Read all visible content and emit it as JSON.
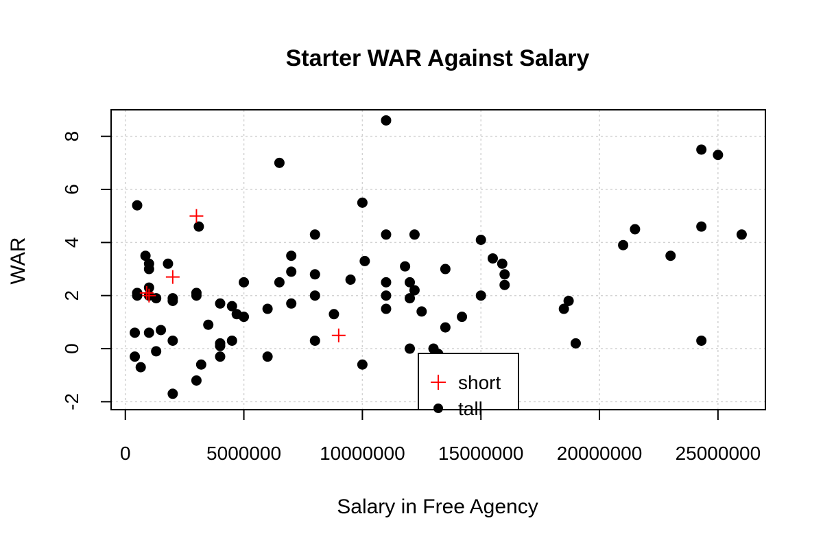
{
  "chart_data": {
    "type": "scatter",
    "title": "Starter WAR Against Salary",
    "xlabel": "Salary in Free Agency",
    "ylabel": "WAR",
    "xlim": [
      -600000,
      27000000
    ],
    "ylim": [
      -2.3,
      9.0
    ],
    "xticks": [
      0,
      5000000,
      10000000,
      15000000,
      20000000,
      25000000
    ],
    "xtick_labels": [
      "0",
      "5000000",
      "10000000",
      "15000000",
      "20000000",
      "25000000"
    ],
    "yticks": [
      -2,
      0,
      2,
      4,
      6,
      8
    ],
    "ytick_labels": [
      "-2",
      "0",
      "2",
      "4",
      "6",
      "8"
    ],
    "grid": true,
    "legend_position": "bottom-center",
    "series": [
      {
        "name": "short",
        "marker": "plus",
        "color": "#ff0000",
        "points": [
          [
            3000000,
            5.0
          ],
          [
            2000000,
            2.7
          ],
          [
            1000000,
            2.0
          ],
          [
            900000,
            2.1
          ],
          [
            9000000,
            0.5
          ]
        ]
      },
      {
        "name": "tall",
        "marker": "circle",
        "color": "#000000",
        "points": [
          [
            500000,
            5.4
          ],
          [
            500000,
            2.1
          ],
          [
            500000,
            2.0
          ],
          [
            400000,
            0.6
          ],
          [
            400000,
            -0.3
          ],
          [
            650000,
            -0.7
          ],
          [
            850000,
            3.5
          ],
          [
            1000000,
            3.2
          ],
          [
            1000000,
            3.0
          ],
          [
            1000000,
            2.3
          ],
          [
            1000000,
            2.0
          ],
          [
            1000000,
            0.6
          ],
          [
            1300000,
            1.9
          ],
          [
            1300000,
            -0.1
          ],
          [
            1500000,
            0.7
          ],
          [
            1800000,
            3.2
          ],
          [
            2000000,
            1.9
          ],
          [
            2000000,
            1.8
          ],
          [
            2000000,
            0.3
          ],
          [
            2000000,
            -1.7
          ],
          [
            3000000,
            2.1
          ],
          [
            3000000,
            2.0
          ],
          [
            3100000,
            4.6
          ],
          [
            3000000,
            -1.2
          ],
          [
            3200000,
            -0.6
          ],
          [
            3500000,
            0.9
          ],
          [
            4000000,
            1.7
          ],
          [
            4000000,
            0.2
          ],
          [
            4000000,
            0.1
          ],
          [
            4000000,
            -0.3
          ],
          [
            4500000,
            1.6
          ],
          [
            4500000,
            0.3
          ],
          [
            4700000,
            1.3
          ],
          [
            5000000,
            2.5
          ],
          [
            5000000,
            1.2
          ],
          [
            6000000,
            1.5
          ],
          [
            6000000,
            -0.3
          ],
          [
            6500000,
            7.0
          ],
          [
            6500000,
            2.5
          ],
          [
            7000000,
            3.5
          ],
          [
            7000000,
            2.9
          ],
          [
            7000000,
            1.7
          ],
          [
            8000000,
            4.3
          ],
          [
            8000000,
            2.8
          ],
          [
            8000000,
            2.0
          ],
          [
            8000000,
            0.3
          ],
          [
            8800000,
            1.3
          ],
          [
            9500000,
            2.6
          ],
          [
            10000000,
            5.5
          ],
          [
            10100000,
            3.3
          ],
          [
            10000000,
            -0.6
          ],
          [
            11000000,
            8.6
          ],
          [
            11000000,
            4.3
          ],
          [
            11000000,
            2.5
          ],
          [
            11000000,
            2.0
          ],
          [
            11000000,
            1.5
          ],
          [
            11800000,
            3.1
          ],
          [
            12000000,
            2.5
          ],
          [
            12000000,
            1.9
          ],
          [
            12000000,
            0.0
          ],
          [
            12200000,
            4.3
          ],
          [
            12200000,
            2.2
          ],
          [
            12500000,
            1.4
          ],
          [
            13000000,
            0.0
          ],
          [
            13200000,
            -0.2
          ],
          [
            13500000,
            3.0
          ],
          [
            13500000,
            0.8
          ],
          [
            14200000,
            1.2
          ],
          [
            15000000,
            4.1
          ],
          [
            15000000,
            2.0
          ],
          [
            15500000,
            3.4
          ],
          [
            15900000,
            3.2
          ],
          [
            16000000,
            2.8
          ],
          [
            16000000,
            2.4
          ],
          [
            18500000,
            1.5
          ],
          [
            18700000,
            1.8
          ],
          [
            19000000,
            0.2
          ],
          [
            21000000,
            3.9
          ],
          [
            21500000,
            4.5
          ],
          [
            23000000,
            3.5
          ],
          [
            24300000,
            7.5
          ],
          [
            24300000,
            4.6
          ],
          [
            24300000,
            0.3
          ],
          [
            25000000,
            7.3
          ],
          [
            26000000,
            4.3
          ]
        ]
      }
    ]
  },
  "legend": {
    "items": [
      {
        "label": "short",
        "marker": "plus",
        "color": "#ff0000"
      },
      {
        "label": "tall",
        "marker": "circle",
        "color": "#000000"
      }
    ]
  }
}
